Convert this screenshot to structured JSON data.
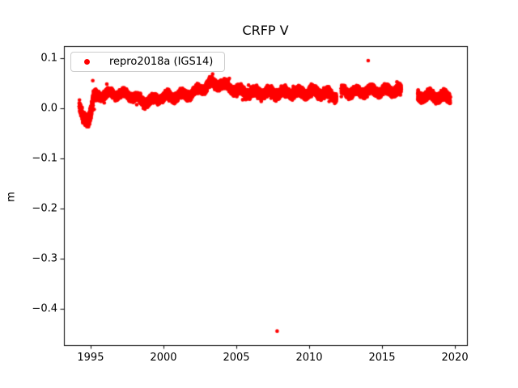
{
  "figure": {
    "background": "#ffffff",
    "axis_color": "#000000",
    "tick_label_color": "#000000"
  },
  "chart_data": {
    "type": "scatter",
    "title": "CRFP V",
    "xlabel": "",
    "ylabel": "m",
    "xlim": [
      1993.17,
      2020.83
    ],
    "ylim": [
      -0.473,
      0.124
    ],
    "grid": false,
    "xticks": [
      {
        "value": 1995,
        "label": "1995"
      },
      {
        "value": 2000,
        "label": "2000"
      },
      {
        "value": 2005,
        "label": "2005"
      },
      {
        "value": 2010,
        "label": "2010"
      },
      {
        "value": 2015,
        "label": "2015"
      },
      {
        "value": 2020,
        "label": "2020"
      }
    ],
    "yticks": [
      {
        "value": 0.1,
        "label": "0.1"
      },
      {
        "value": 0.0,
        "label": "0.0"
      },
      {
        "value": -0.1,
        "label": "−0.1"
      },
      {
        "value": -0.2,
        "label": "−0.2"
      },
      {
        "value": -0.3,
        "label": "−0.3"
      },
      {
        "value": -0.4,
        "label": "−0.4"
      }
    ],
    "legend": {
      "position": "upper left",
      "border_color": "#cccccc"
    },
    "series": [
      {
        "name": "repro2018a (IGS14)",
        "color": "#ff0000",
        "marker": "dot",
        "marker_radius_px": 2.3,
        "span_years": [
          1994.22,
          2019.68
        ],
        "points_per_year": 320,
        "annual_amplitude": 0.005,
        "band_profile": [
          [
            1994.22,
            0.0,
            0.013
          ],
          [
            1994.5,
            -0.018,
            0.015
          ],
          [
            1994.8,
            -0.022,
            0.016
          ],
          [
            1995.05,
            -0.008,
            0.018
          ],
          [
            1995.2,
            0.018,
            0.016
          ],
          [
            1995.5,
            0.026,
            0.01
          ],
          [
            1996.0,
            0.027,
            0.01
          ],
          [
            1996.5,
            0.03,
            0.01
          ],
          [
            1997.0,
            0.027,
            0.01
          ],
          [
            1997.5,
            0.028,
            0.01
          ],
          [
            1998.0,
            0.022,
            0.01
          ],
          [
            1998.6,
            0.013,
            0.011
          ],
          [
            1999.2,
            0.015,
            0.011
          ],
          [
            1999.8,
            0.022,
            0.01
          ],
          [
            2000.5,
            0.024,
            0.01
          ],
          [
            2001.2,
            0.025,
            0.011
          ],
          [
            2002.0,
            0.03,
            0.011
          ],
          [
            2002.7,
            0.04,
            0.011
          ],
          [
            2003.3,
            0.048,
            0.011
          ],
          [
            2003.8,
            0.049,
            0.011
          ],
          [
            2004.3,
            0.044,
            0.011
          ],
          [
            2005.0,
            0.036,
            0.011
          ],
          [
            2005.7,
            0.031,
            0.012
          ],
          [
            2006.5,
            0.031,
            0.012
          ],
          [
            2007.5,
            0.03,
            0.012
          ],
          [
            2008.5,
            0.031,
            0.012
          ],
          [
            2009.5,
            0.031,
            0.012
          ],
          [
            2010.5,
            0.032,
            0.012
          ],
          [
            2011.3,
            0.028,
            0.012
          ],
          [
            2011.87,
            0.024,
            0.012
          ],
          [
            2012.2,
            0.034,
            0.011
          ],
          [
            2013.0,
            0.032,
            0.011
          ],
          [
            2014.0,
            0.034,
            0.011
          ],
          [
            2015.0,
            0.034,
            0.011
          ],
          [
            2015.8,
            0.035,
            0.011
          ],
          [
            2016.1,
            0.036,
            0.013
          ],
          [
            2016.32,
            0.032,
            0.011
          ],
          [
            2017.45,
            0.024,
            0.012
          ],
          [
            2018.5,
            0.024,
            0.012
          ],
          [
            2019.68,
            0.022,
            0.012
          ]
        ],
        "gaps": [
          [
            2011.87,
            2012.2
          ],
          [
            2016.32,
            2017.45
          ]
        ],
        "outliers": [
          [
            1995.15,
            0.055
          ],
          [
            2007.8,
            -0.445
          ],
          [
            2014.05,
            0.095
          ]
        ]
      }
    ]
  }
}
